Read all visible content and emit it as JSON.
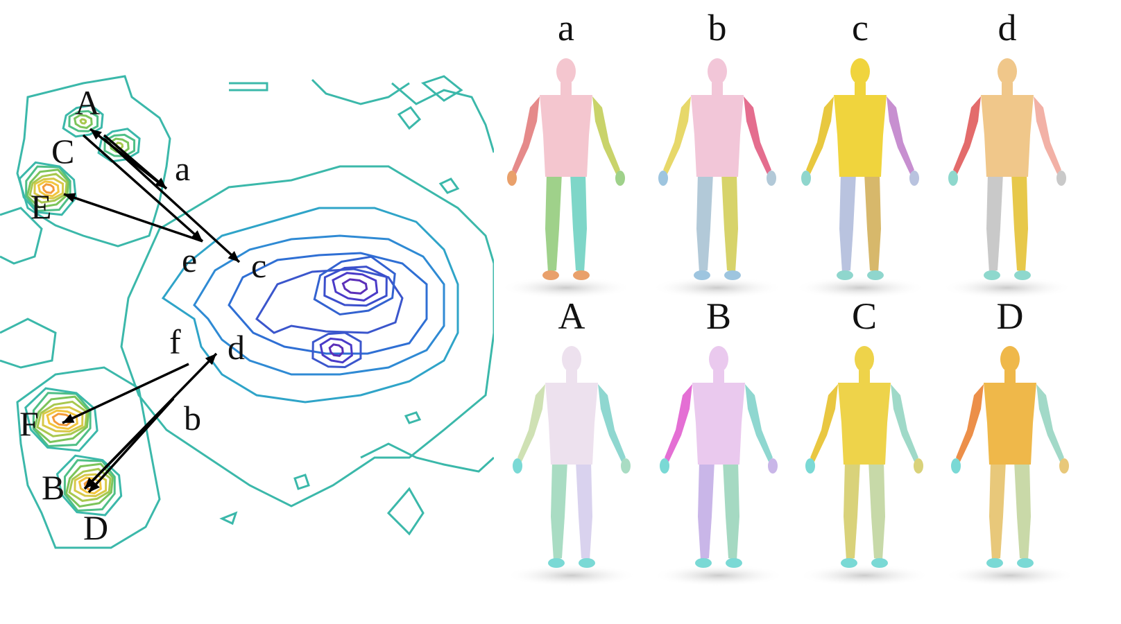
{
  "contour_labels": [
    "A",
    "C",
    "E",
    "F",
    "B",
    "D",
    "a",
    "b",
    "c",
    "d",
    "e",
    "f"
  ],
  "figure_labels_top": [
    "a",
    "b",
    "c",
    "d"
  ],
  "figure_labels_bottom": [
    "A",
    "B",
    "C",
    "D"
  ],
  "colors": {
    "teal": "#3bb8aa",
    "blue": "#2f8ad4",
    "indigo": "#4a3bc8",
    "green": "#7cc45a",
    "yellow": "#f2c53d",
    "orange": "#f39b3a",
    "arrow": "#000000"
  },
  "top_row_palettes": [
    [
      "#f4c6cf",
      "#e58a8a",
      "#9fd18a",
      "#7ed6c8",
      "#c9d36a",
      "#e9a06b"
    ],
    [
      "#f2c6d8",
      "#e7d86a",
      "#b2c9d8",
      "#d7d36a",
      "#e46d8e",
      "#9ec5df"
    ],
    [
      "#f0d43d",
      "#e8c83f",
      "#b9c3df",
      "#d7b86b",
      "#c78fd0",
      "#8fd6cd"
    ],
    [
      "#f0c78a",
      "#e36b6b",
      "#c9c9c9",
      "#e7c84a",
      "#f2b1a6",
      "#8ed8cd"
    ]
  ],
  "bottom_row_palettes": [
    [
      "#ede1ee",
      "#cfe1b4",
      "#a9dcc3",
      "#d9d2ee",
      "#8fd7d0",
      "#7ad9d5"
    ],
    [
      "#eac9ee",
      "#e46fd4",
      "#c9b6e8",
      "#a5d9c2",
      "#8fd7d0",
      "#7ad9d5"
    ],
    [
      "#eed34a",
      "#e9c741",
      "#d9d27a",
      "#c7d9a8",
      "#9fd9c8",
      "#7ad9d5"
    ],
    [
      "#efb84a",
      "#ec8f49",
      "#e8c87a",
      "#c9d9a8",
      "#a2d9c8",
      "#7ad9d5"
    ]
  ]
}
